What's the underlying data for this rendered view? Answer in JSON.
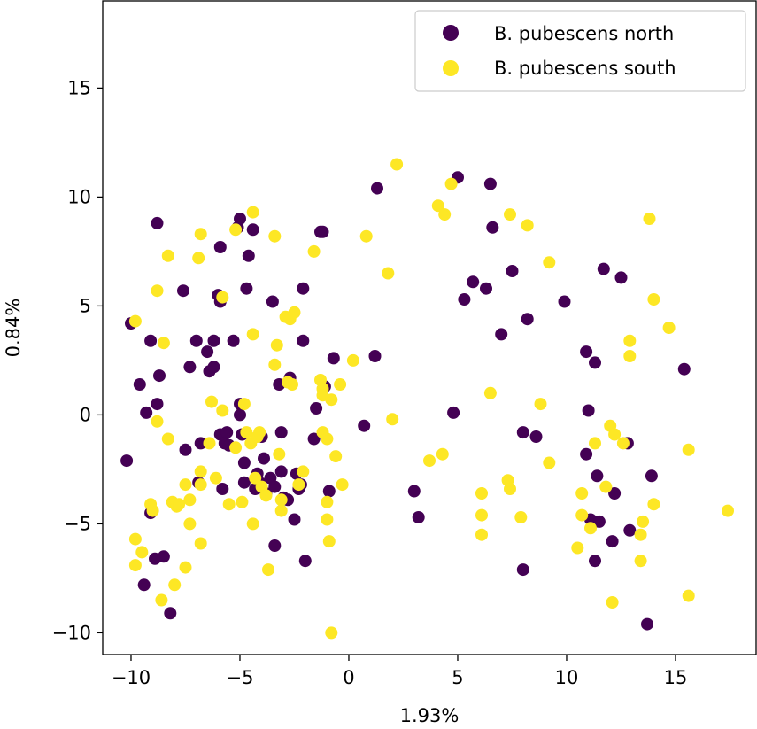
{
  "chart_data": {
    "type": "scatter",
    "title": "",
    "xlabel": "1.93%",
    "ylabel": "0.84%",
    "xlim": [
      -11.3,
      18.7
    ],
    "ylim": [
      -11.0,
      19.0
    ],
    "xticks": [
      -10,
      -5,
      0,
      5,
      10,
      15
    ],
    "yticks": [
      -10,
      -5,
      0,
      5,
      10,
      15
    ],
    "xtick_labels": [
      "−10",
      "−5",
      "0",
      "5",
      "10",
      "15"
    ],
    "ytick_labels": [
      "−10",
      "−5",
      "0",
      "5",
      "10",
      "15"
    ],
    "grid": false,
    "legend_position": "upper right",
    "series": [
      {
        "name": "B. pubescens north",
        "color": "#440154",
        "points": [
          [
            -10.2,
            -2.1
          ],
          [
            -10.0,
            4.2
          ],
          [
            -9.6,
            1.4
          ],
          [
            -9.3,
            0.1
          ],
          [
            -9.1,
            -4.5
          ],
          [
            -9.1,
            3.4
          ],
          [
            -8.8,
            8.8
          ],
          [
            -8.8,
            0.5
          ],
          [
            -8.7,
            1.8
          ],
          [
            -8.9,
            -6.6
          ],
          [
            -8.5,
            -6.5
          ],
          [
            -9.4,
            -7.8
          ],
          [
            -8.2,
            -9.1
          ],
          [
            -7.6,
            5.7
          ],
          [
            -7.5,
            -1.6
          ],
          [
            -7.3,
            2.2
          ],
          [
            -7.0,
            3.4
          ],
          [
            -6.9,
            -3.1
          ],
          [
            -6.8,
            -1.3
          ],
          [
            -6.5,
            2.9
          ],
          [
            -6.4,
            2.0
          ],
          [
            -6.2,
            3.4
          ],
          [
            -6.2,
            2.2
          ],
          [
            -6.0,
            5.5
          ],
          [
            -5.9,
            7.7
          ],
          [
            -5.9,
            5.2
          ],
          [
            -5.8,
            -3.4
          ],
          [
            -5.7,
            -1.3
          ],
          [
            -5.9,
            -0.9
          ],
          [
            -5.6,
            -0.8
          ],
          [
            -5.5,
            -1.4
          ],
          [
            -5.3,
            3.4
          ],
          [
            -5.1,
            8.6
          ],
          [
            -5.0,
            9.0
          ],
          [
            -5.0,
            0.5
          ],
          [
            -5.0,
            0.0
          ],
          [
            -4.8,
            -2.2
          ],
          [
            -4.8,
            -3.1
          ],
          [
            -4.9,
            -0.9
          ],
          [
            -4.7,
            5.8
          ],
          [
            -4.6,
            7.3
          ],
          [
            -4.4,
            8.5
          ],
          [
            -4.3,
            -3.4
          ],
          [
            -4.2,
            -2.7
          ],
          [
            -4.1,
            -3.1
          ],
          [
            -4.0,
            -1.0
          ],
          [
            -3.9,
            -2.0
          ],
          [
            -3.8,
            -3.6
          ],
          [
            -3.6,
            -2.9
          ],
          [
            -3.5,
            5.2
          ],
          [
            -3.4,
            -3.3
          ],
          [
            -3.4,
            -6.0
          ],
          [
            -3.2,
            1.4
          ],
          [
            -3.1,
            -2.6
          ],
          [
            -3.1,
            -0.8
          ],
          [
            -3.0,
            -3.8
          ],
          [
            -2.8,
            -3.9
          ],
          [
            -2.7,
            1.7
          ],
          [
            -2.5,
            -4.8
          ],
          [
            -2.4,
            -2.7
          ],
          [
            -2.3,
            -3.4
          ],
          [
            -2.2,
            -3.2
          ],
          [
            -2.1,
            5.8
          ],
          [
            -2.1,
            3.4
          ],
          [
            -2.0,
            -6.7
          ],
          [
            -1.6,
            -1.1
          ],
          [
            -1.5,
            0.3
          ],
          [
            -1.3,
            8.4
          ],
          [
            -1.2,
            8.4
          ],
          [
            -1.1,
            1.3
          ],
          [
            -0.9,
            -3.5
          ],
          [
            -0.7,
            2.6
          ],
          [
            0.7,
            -0.5
          ],
          [
            1.2,
            2.7
          ],
          [
            1.3,
            10.4
          ],
          [
            3.0,
            -3.5
          ],
          [
            3.2,
            -4.7
          ],
          [
            4.8,
            0.1
          ],
          [
            5.0,
            10.9
          ],
          [
            5.3,
            5.3
          ],
          [
            5.7,
            6.1
          ],
          [
            6.3,
            5.8
          ],
          [
            6.5,
            10.6
          ],
          [
            6.6,
            8.6
          ],
          [
            7.0,
            3.7
          ],
          [
            7.5,
            6.6
          ],
          [
            8.0,
            -7.1
          ],
          [
            8.0,
            -0.8
          ],
          [
            8.2,
            4.4
          ],
          [
            8.6,
            -1.0
          ],
          [
            9.9,
            5.2
          ],
          [
            10.9,
            -1.8
          ],
          [
            10.9,
            2.9
          ],
          [
            11.0,
            0.2
          ],
          [
            11.1,
            -4.8
          ],
          [
            11.3,
            -4.9
          ],
          [
            11.3,
            -6.7
          ],
          [
            11.3,
            2.4
          ],
          [
            11.4,
            -2.8
          ],
          [
            11.5,
            -4.9
          ],
          [
            11.7,
            6.7
          ],
          [
            12.1,
            -5.8
          ],
          [
            12.2,
            -3.6
          ],
          [
            12.5,
            6.3
          ],
          [
            12.8,
            -1.3
          ],
          [
            12.9,
            -5.3
          ],
          [
            13.7,
            -9.6
          ],
          [
            13.9,
            -2.8
          ],
          [
            15.4,
            2.1
          ]
        ]
      },
      {
        "name": "B. pubescens south",
        "color": "#fde725",
        "points": [
          [
            -9.8,
            -5.7
          ],
          [
            -9.8,
            -6.9
          ],
          [
            -9.8,
            4.3
          ],
          [
            -9.5,
            -6.3
          ],
          [
            -9.1,
            -4.1
          ],
          [
            -9.0,
            -4.4
          ],
          [
            -8.8,
            5.7
          ],
          [
            -8.8,
            -0.3
          ],
          [
            -8.6,
            -8.5
          ],
          [
            -8.5,
            3.3
          ],
          [
            -8.3,
            7.3
          ],
          [
            -8.3,
            -1.1
          ],
          [
            -8.1,
            -4.0
          ],
          [
            -8.0,
            -7.8
          ],
          [
            -7.9,
            -4.2
          ],
          [
            -7.8,
            -4.1
          ],
          [
            -7.5,
            -7.0
          ],
          [
            -7.5,
            -3.2
          ],
          [
            -7.3,
            -3.9
          ],
          [
            -7.3,
            -5.0
          ],
          [
            -6.9,
            7.2
          ],
          [
            -6.8,
            8.3
          ],
          [
            -6.8,
            -3.2
          ],
          [
            -6.8,
            -2.6
          ],
          [
            -6.8,
            -5.9
          ],
          [
            -6.4,
            -1.3
          ],
          [
            -6.3,
            0.6
          ],
          [
            -6.1,
            -2.9
          ],
          [
            -5.8,
            0.2
          ],
          [
            -5.8,
            5.4
          ],
          [
            -5.5,
            -4.1
          ],
          [
            -5.2,
            -1.5
          ],
          [
            -5.2,
            8.5
          ],
          [
            -4.9,
            -4.0
          ],
          [
            -4.8,
            0.5
          ],
          [
            -4.7,
            -0.8
          ],
          [
            -4.5,
            -1.3
          ],
          [
            -4.4,
            -5.0
          ],
          [
            -4.4,
            3.7
          ],
          [
            -4.4,
            9.3
          ],
          [
            -4.3,
            -2.9
          ],
          [
            -4.2,
            -1.0
          ],
          [
            -4.1,
            -0.8
          ],
          [
            -4.0,
            -3.3
          ],
          [
            -3.8,
            -3.7
          ],
          [
            -3.7,
            -7.1
          ],
          [
            -3.4,
            8.2
          ],
          [
            -3.4,
            2.3
          ],
          [
            -3.3,
            3.2
          ],
          [
            -3.2,
            -1.8
          ],
          [
            -3.1,
            -3.9
          ],
          [
            -3.1,
            -4.4
          ],
          [
            -2.9,
            4.5
          ],
          [
            -2.8,
            1.5
          ],
          [
            -2.7,
            4.4
          ],
          [
            -2.6,
            1.4
          ],
          [
            -2.5,
            4.7
          ],
          [
            -2.3,
            -3.2
          ],
          [
            -2.1,
            -2.6
          ],
          [
            -1.6,
            7.5
          ],
          [
            -1.3,
            1.6
          ],
          [
            -1.2,
            1.2
          ],
          [
            -1.2,
            0.9
          ],
          [
            -1.2,
            -0.8
          ],
          [
            -1.0,
            -4.8
          ],
          [
            -1.0,
            -1.1
          ],
          [
            -1.0,
            -4.0
          ],
          [
            -0.9,
            -5.8
          ],
          [
            -0.8,
            -10.0
          ],
          [
            -0.8,
            0.7
          ],
          [
            -0.6,
            -1.9
          ],
          [
            -0.4,
            1.4
          ],
          [
            -0.3,
            -3.2
          ],
          [
            0.2,
            2.5
          ],
          [
            0.8,
            8.2
          ],
          [
            1.8,
            6.5
          ],
          [
            2.0,
            -0.2
          ],
          [
            2.2,
            11.5
          ],
          [
            3.7,
            -2.1
          ],
          [
            4.1,
            9.6
          ],
          [
            4.3,
            -1.8
          ],
          [
            4.4,
            9.2
          ],
          [
            4.7,
            10.6
          ],
          [
            6.1,
            -3.6
          ],
          [
            6.1,
            -4.6
          ],
          [
            6.1,
            -5.5
          ],
          [
            6.5,
            1.0
          ],
          [
            7.3,
            -3.0
          ],
          [
            7.4,
            -3.4
          ],
          [
            7.4,
            9.2
          ],
          [
            7.9,
            -4.7
          ],
          [
            8.2,
            8.7
          ],
          [
            8.8,
            0.5
          ],
          [
            9.2,
            7.0
          ],
          [
            9.2,
            -2.2
          ],
          [
            10.5,
            -6.1
          ],
          [
            10.7,
            -4.6
          ],
          [
            10.7,
            -3.6
          ],
          [
            11.1,
            -5.2
          ],
          [
            11.3,
            -1.3
          ],
          [
            11.8,
            -3.3
          ],
          [
            12.0,
            -0.5
          ],
          [
            12.1,
            -8.6
          ],
          [
            12.2,
            -0.9
          ],
          [
            12.6,
            -1.3
          ],
          [
            12.9,
            3.4
          ],
          [
            12.9,
            2.7
          ],
          [
            13.4,
            -5.5
          ],
          [
            13.4,
            -6.7
          ],
          [
            13.5,
            -4.9
          ],
          [
            13.8,
            9.0
          ],
          [
            14.0,
            5.3
          ],
          [
            14.0,
            -4.1
          ],
          [
            14.7,
            4.0
          ],
          [
            15.6,
            -1.6
          ],
          [
            15.6,
            -8.3
          ],
          [
            17.4,
            -4.4
          ]
        ]
      }
    ]
  }
}
